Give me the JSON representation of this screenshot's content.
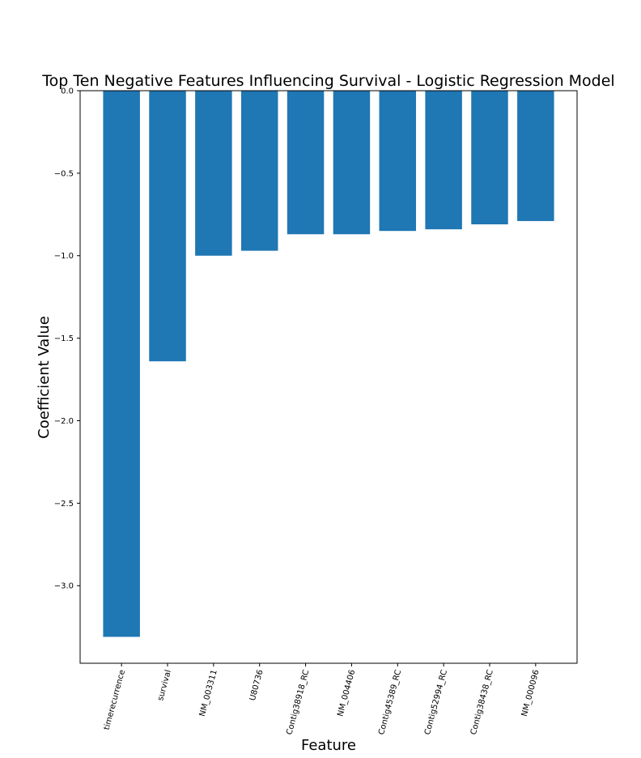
{
  "chart_data": {
    "type": "bar",
    "title": "Top Ten Negative Features Influencing Survival - Logistic Regression Model",
    "xlabel": "Feature",
    "ylabel": "Coefficient Value",
    "categories": [
      "timerecurrence",
      "survival",
      "NM_003311",
      "U80736",
      "Contig38918_RC",
      "NM_004406",
      "Contig45389_RC",
      "Contig52994_RC",
      "Contig38438_RC",
      "NM_000096"
    ],
    "values": [
      -3.31,
      -1.64,
      -1.0,
      -0.97,
      -0.87,
      -0.87,
      -0.85,
      -0.84,
      -0.81,
      -0.79
    ],
    "ylim": [
      -3.47,
      0.0
    ],
    "yticks": [
      0.0,
      -0.5,
      -1.0,
      -1.5,
      -2.0,
      -2.5,
      -3.0
    ],
    "ytick_labels": [
      "0.0",
      "−0.5",
      "−1.0",
      "−1.5",
      "−2.0",
      "−2.5",
      "−3.0"
    ],
    "bar_color": "#1f77b4",
    "grid": false,
    "legend": "none"
  }
}
